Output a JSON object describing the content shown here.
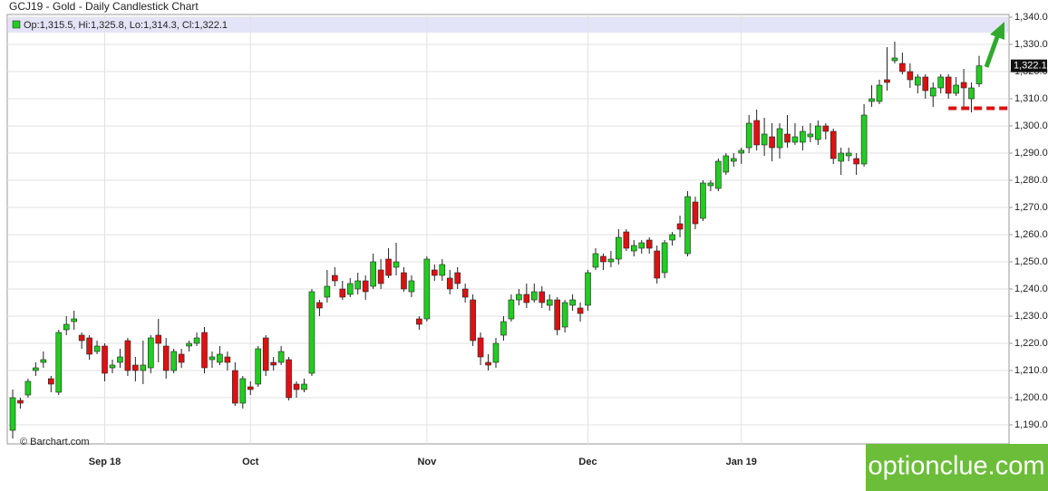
{
  "chart_data": {
    "type": "candlestick",
    "title": "GCJ19 - Gold - Daily Candlestick Chart",
    "legend_text": "Op:1,315.5, Hi:1,325.8, Lo:1,314.3, Cl:1,322.1",
    "source": "© Barchart.com",
    "watermark": "optionclue.com",
    "last_label": "1,322.1",
    "up_color": "#22cc22",
    "down_color": "#dd1111",
    "level": 1306.5,
    "level_color": "#dd1111",
    "grid": true,
    "ylim": [
      1183,
      1341
    ],
    "yticks": [
      {
        "value": 1190,
        "label": "1,190.0"
      },
      {
        "value": 1200,
        "label": "1,200.0"
      },
      {
        "value": 1210,
        "label": "1,210.0"
      },
      {
        "value": 1220,
        "label": "1,220.0"
      },
      {
        "value": 1230,
        "label": "1,230.0"
      },
      {
        "value": 1240,
        "label": "1,240.0"
      },
      {
        "value": 1250,
        "label": "1,250.0"
      },
      {
        "value": 1260,
        "label": "1,260.0"
      },
      {
        "value": 1270,
        "label": "1,270.0"
      },
      {
        "value": 1280,
        "label": "1,280.0"
      },
      {
        "value": 1290,
        "label": "1,290.0"
      },
      {
        "value": 1300,
        "label": "1,300.0"
      },
      {
        "value": 1310,
        "label": "1,310.0"
      },
      {
        "value": 1320,
        "label": "1,320.0"
      },
      {
        "value": 1330,
        "label": "1,330.0"
      },
      {
        "value": 1340,
        "label": "1,340.0"
      }
    ],
    "categories": [
      null,
      null,
      null,
      null,
      null,
      null,
      null,
      null,
      null,
      null,
      null,
      null,
      "Sep 18",
      null,
      null,
      null,
      null,
      null,
      null,
      null,
      null,
      null,
      null,
      null,
      null,
      null,
      null,
      null,
      null,
      null,
      null,
      "Oct",
      null,
      null,
      null,
      null,
      null,
      null,
      null,
      null,
      null,
      null,
      null,
      null,
      null,
      null,
      null,
      null,
      null,
      null,
      null,
      null,
      null,
      null,
      "Nov",
      null,
      null,
      null,
      null,
      null,
      null,
      null,
      null,
      null,
      null,
      null,
      null,
      null,
      null,
      null,
      null,
      null,
      null,
      null,
      null,
      "Dec",
      null,
      null,
      null,
      null,
      null,
      null,
      null,
      null,
      null,
      null,
      null,
      null,
      null,
      null,
      null,
      null,
      null,
      null,
      null,
      "Jan 19",
      null,
      null,
      null,
      null,
      null,
      null,
      null,
      null,
      null,
      null,
      null,
      null,
      null,
      null,
      null,
      null,
      null,
      null,
      null,
      null,
      null,
      null,
      null,
      null,
      null,
      null,
      null,
      null,
      null,
      null,
      null
    ],
    "ohlc": [
      [
        1188,
        1203,
        1185,
        1200
      ],
      [
        1199,
        1200,
        1196,
        1198
      ],
      [
        1201,
        1207,
        1200,
        1206
      ],
      [
        1210,
        1213,
        1208,
        1211
      ],
      [
        1213,
        1217,
        1211,
        1214
      ],
      [
        1207,
        1208,
        1202,
        1205
      ],
      [
        1202,
        1225,
        1201,
        1224
      ],
      [
        1225,
        1230,
        1223,
        1227
      ],
      [
        1228,
        1232,
        1225,
        1229
      ],
      [
        1223,
        1224,
        1218,
        1221
      ],
      [
        1222,
        1223,
        1214,
        1216
      ],
      [
        1217,
        1221,
        1216,
        1219
      ],
      [
        1219,
        1220,
        1206,
        1209
      ],
      [
        1211,
        1214,
        1209,
        1212
      ],
      [
        1213,
        1218,
        1211,
        1215
      ],
      [
        1221,
        1222,
        1208,
        1210
      ],
      [
        1212,
        1215,
        1206,
        1210
      ],
      [
        1210,
        1221,
        1205,
        1212
      ],
      [
        1211,
        1223,
        1209,
        1222
      ],
      [
        1223,
        1229,
        1213,
        1220
      ],
      [
        1219,
        1222,
        1207,
        1210
      ],
      [
        1210,
        1218,
        1209,
        1217
      ],
      [
        1216,
        1218,
        1211,
        1213
      ],
      [
        1219,
        1221,
        1217,
        1220
      ],
      [
        1220,
        1224,
        1219,
        1222
      ],
      [
        1224,
        1226,
        1209,
        1211
      ],
      [
        1214,
        1217,
        1211,
        1215
      ],
      [
        1213,
        1219,
        1212,
        1216
      ],
      [
        1215,
        1217,
        1210,
        1213
      ],
      [
        1210,
        1213,
        1197,
        1198
      ],
      [
        1198,
        1208,
        1196,
        1207
      ],
      [
        1204,
        1206,
        1201,
        1203
      ],
      [
        1205,
        1219,
        1204,
        1218
      ],
      [
        1222,
        1223,
        1208,
        1210
      ],
      [
        1213,
        1215,
        1210,
        1212
      ],
      [
        1213,
        1219,
        1212,
        1217
      ],
      [
        1214,
        1215,
        1199,
        1200
      ],
      [
        1205,
        1206,
        1200,
        1203
      ],
      [
        1203,
        1207,
        1202,
        1205
      ],
      [
        1209,
        1240,
        1208,
        1239
      ],
      [
        1235,
        1236,
        1230,
        1233
      ],
      [
        1237,
        1247,
        1235,
        1241
      ],
      [
        1245,
        1248,
        1241,
        1243
      ],
      [
        1240,
        1243,
        1236,
        1237
      ],
      [
        1238,
        1244,
        1237,
        1242
      ],
      [
        1240,
        1246,
        1238,
        1243
      ],
      [
        1243,
        1245,
        1236,
        1239
      ],
      [
        1241,
        1253,
        1240,
        1250
      ],
      [
        1247,
        1251,
        1240,
        1242
      ],
      [
        1251,
        1255,
        1244,
        1245
      ],
      [
        1248,
        1257,
        1245,
        1250
      ],
      [
        1246,
        1248,
        1239,
        1240
      ],
      [
        1239,
        1245,
        1237,
        1243
      ],
      [
        1229,
        1230,
        1225,
        1227
      ],
      [
        1229,
        1252,
        1228,
        1251
      ],
      [
        1247,
        1249,
        1243,
        1245
      ],
      [
        1245,
        1251,
        1243,
        1249
      ],
      [
        1244,
        1247,
        1238,
        1240
      ],
      [
        1246,
        1248,
        1240,
        1242
      ],
      [
        1240,
        1242,
        1235,
        1237
      ],
      [
        1236,
        1238,
        1219,
        1221
      ],
      [
        1222,
        1224,
        1212,
        1215
      ],
      [
        1213,
        1216,
        1210,
        1212
      ],
      [
        1213,
        1222,
        1211,
        1220
      ],
      [
        1223,
        1230,
        1221,
        1228
      ],
      [
        1229,
        1238,
        1228,
        1236
      ],
      [
        1236,
        1240,
        1234,
        1238
      ],
      [
        1238,
        1242,
        1233,
        1235
      ],
      [
        1236,
        1242,
        1235,
        1239
      ],
      [
        1239,
        1241,
        1233,
        1235
      ],
      [
        1234,
        1238,
        1232,
        1236
      ],
      [
        1236,
        1237,
        1223,
        1225
      ],
      [
        1226,
        1236,
        1224,
        1235
      ],
      [
        1234,
        1238,
        1232,
        1236
      ],
      [
        1233,
        1235,
        1228,
        1231
      ],
      [
        1234,
        1247,
        1232,
        1246
      ],
      [
        1248,
        1255,
        1247,
        1253
      ],
      [
        1252,
        1253,
        1247,
        1250
      ],
      [
        1250,
        1254,
        1248,
        1251
      ],
      [
        1251,
        1262,
        1249,
        1259
      ],
      [
        1261,
        1262,
        1254,
        1255
      ],
      [
        1254,
        1258,
        1252,
        1256
      ],
      [
        1255,
        1258,
        1253,
        1257
      ],
      [
        1258,
        1259,
        1253,
        1255
      ],
      [
        1254,
        1256,
        1242,
        1244
      ],
      [
        1246,
        1258,
        1244,
        1257
      ],
      [
        1258,
        1261,
        1256,
        1260
      ],
      [
        1264,
        1267,
        1259,
        1262
      ],
      [
        1253,
        1276,
        1252,
        1274
      ],
      [
        1272,
        1274,
        1262,
        1264
      ],
      [
        1266,
        1280,
        1265,
        1279
      ],
      [
        1278,
        1280,
        1276,
        1279
      ],
      [
        1277,
        1288,
        1276,
        1287
      ],
      [
        1283,
        1290,
        1282,
        1289
      ],
      [
        1287,
        1290,
        1285,
        1288
      ],
      [
        1290,
        1292,
        1286,
        1291
      ],
      [
        1292,
        1304,
        1290,
        1301
      ],
      [
        1302,
        1306,
        1291,
        1293
      ],
      [
        1293,
        1303,
        1289,
        1297
      ],
      [
        1296,
        1301,
        1287,
        1292
      ],
      [
        1292,
        1301,
        1288,
        1299
      ],
      [
        1297,
        1304,
        1292,
        1294
      ],
      [
        1294,
        1301,
        1293,
        1296
      ],
      [
        1294,
        1300,
        1291,
        1298
      ],
      [
        1296,
        1301,
        1294,
        1297
      ],
      [
        1295,
        1302,
        1293,
        1300
      ],
      [
        1300,
        1301,
        1295,
        1298
      ],
      [
        1298,
        1299,
        1286,
        1288
      ],
      [
        1287,
        1292,
        1282,
        1290
      ],
      [
        1289,
        1292,
        1287,
        1290
      ],
      [
        1288,
        1290,
        1282,
        1286
      ],
      [
        1286,
        1308,
        1285,
        1304
      ],
      [
        1309,
        1315,
        1307,
        1310
      ],
      [
        1309,
        1317,
        1308,
        1315
      ],
      [
        1317,
        1329,
        1313,
        1316
      ],
      [
        1324,
        1331,
        1323,
        1325
      ],
      [
        1323,
        1327,
        1319,
        1320
      ],
      [
        1320,
        1323,
        1314,
        1317
      ],
      [
        1315,
        1319,
        1312,
        1318
      ],
      [
        1318,
        1319,
        1310,
        1313
      ],
      [
        1311,
        1316,
        1307,
        1314
      ],
      [
        1314,
        1319,
        1312,
        1318
      ],
      [
        1318,
        1319,
        1310,
        1312
      ],
      [
        1312,
        1318,
        1311,
        1315
      ],
      [
        1316,
        1321,
        1307,
        1314
      ],
      [
        1310,
        1316,
        1305,
        1314
      ],
      [
        1315.5,
        1325.8,
        1314.3,
        1322.1
      ]
    ]
  }
}
